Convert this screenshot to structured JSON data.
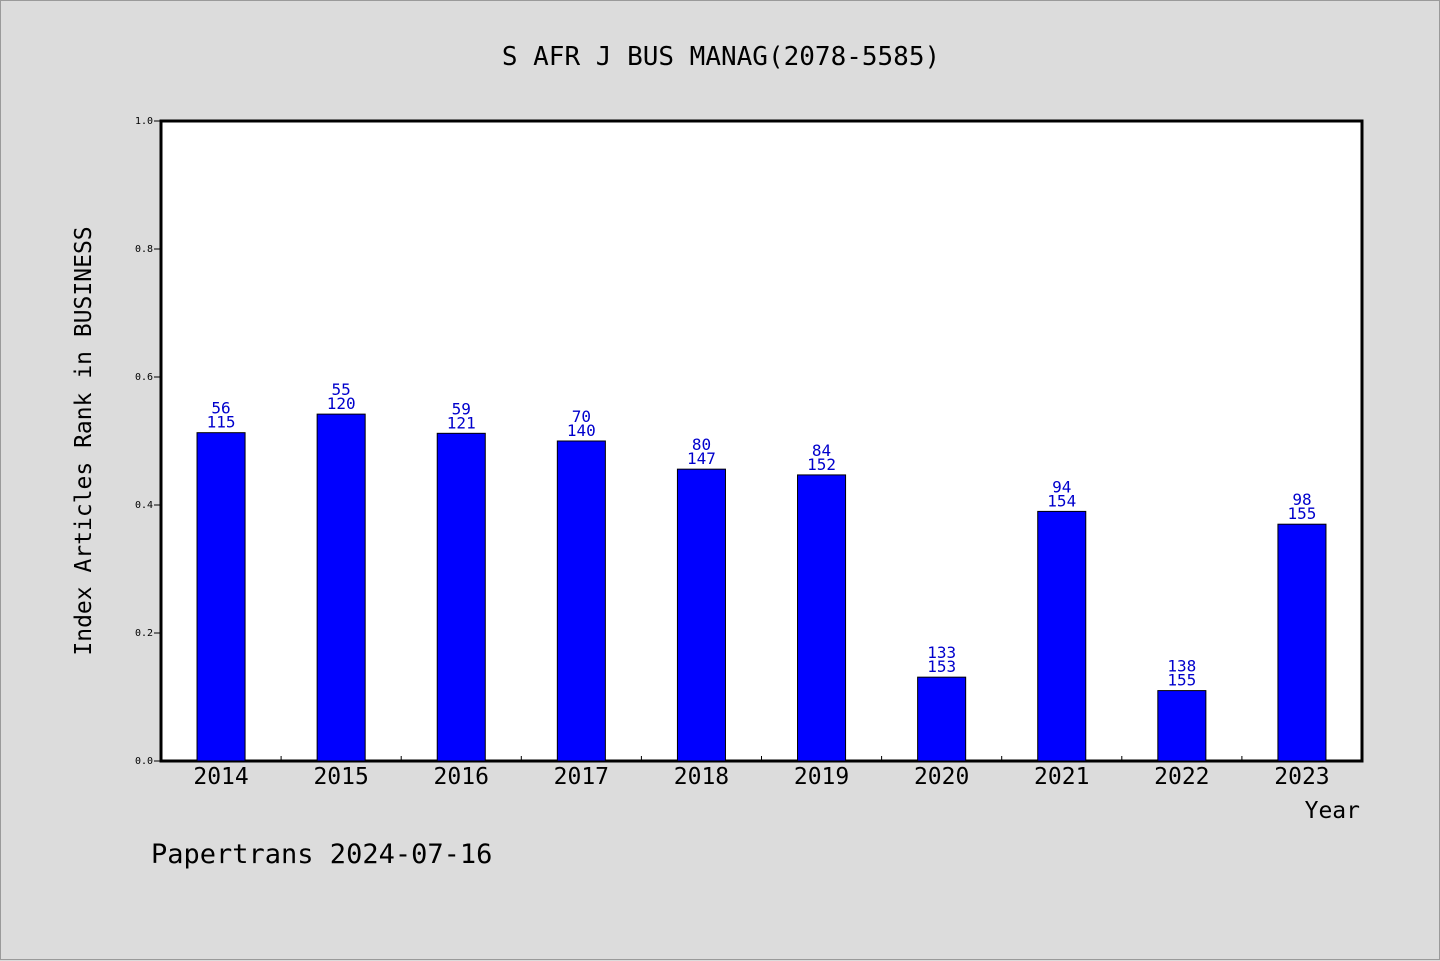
{
  "chart_data": {
    "type": "bar",
    "title": "S AFR J BUS MANAG(2078-5585)",
    "xlabel": "Year",
    "ylabel": "Index Articles Rank in BUSINESS",
    "footer": "Papertrans 2024-07-16",
    "ylim": [
      0,
      1.0
    ],
    "yticks": [
      "0.0",
      "0.2",
      "0.4",
      "0.6",
      "0.8",
      "1.0"
    ],
    "grid": false,
    "colors": {
      "bar": "#0000ff",
      "label": "#0000cc",
      "text": "#000000",
      "plot_bg": "#ffffff",
      "page_bg": "#dcdcdc"
    },
    "categories": [
      "2014",
      "2015",
      "2016",
      "2017",
      "2018",
      "2019",
      "2020",
      "2021",
      "2022",
      "2023"
    ],
    "values": [
      0.513,
      0.542,
      0.512,
      0.5,
      0.456,
      0.447,
      0.131,
      0.39,
      0.11,
      0.37
    ],
    "rank_labels": [
      "56",
      "55",
      "59",
      "70",
      "80",
      "84",
      "133",
      "94",
      "138",
      "98"
    ],
    "total_labels": [
      "115",
      "120",
      "121",
      "140",
      "147",
      "152",
      "153",
      "154",
      "155",
      "155"
    ]
  }
}
